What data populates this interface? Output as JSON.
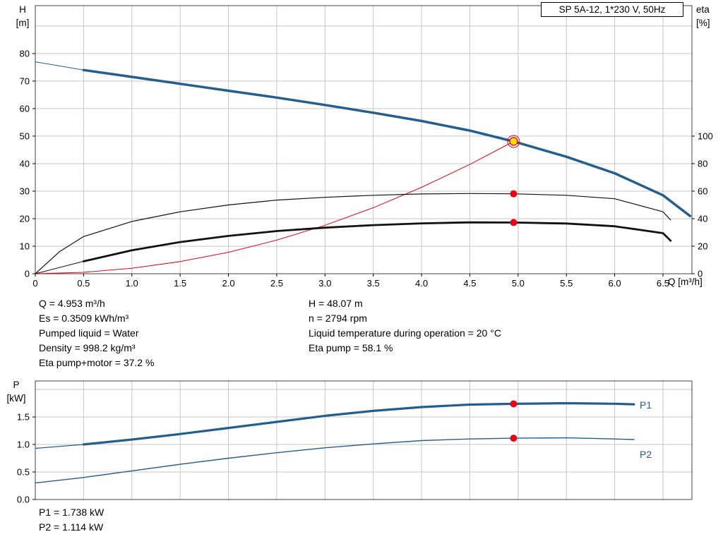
{
  "colors": {
    "curve_blue": "#245e8f",
    "curve_black": "#111111",
    "marker_red": "#e30613",
    "duty_fill": "#ffe000",
    "grid": "#c6c6c6",
    "border": "#404040"
  },
  "results": {
    "left": [
      "Q = 4.953 m³/h",
      "Es = 0.3509 kWh/m³",
      "Pumped liquid = Water",
      "Density = 998.2 kg/m³",
      "Eta pump+motor = 37.2 %"
    ],
    "right": [
      "H = 48.07 m",
      "n = 2794 rpm",
      "Liquid temperature during operation = 20 °C",
      "Eta pump = 58.1 %"
    ]
  },
  "power_results": [
    "P1 = 1.738 kW",
    "P2 = 1.114 kW"
  ],
  "chart_data": [
    {
      "type": "line",
      "title": "SP 5A-12, 1*230 V, 50Hz",
      "xlabel": "Q [m³/h]",
      "ylabels": {
        "left_name": "H",
        "left_unit": "[m]",
        "right_name": "eta",
        "right_unit": "[%]"
      },
      "xlim": [
        0,
        6.8
      ],
      "ylim": [
        0,
        97.4
      ],
      "right_to_left": 0.5,
      "x_ticks": [
        0,
        0.5,
        1,
        1.5,
        2,
        2.5,
        3,
        3.5,
        4,
        4.5,
        5,
        5.5,
        6,
        6.5
      ],
      "x_tick_labels": [
        "0",
        "0.5",
        "1.0",
        "1.5",
        "2.0",
        "2.5",
        "3.0",
        "3.5",
        "4.0",
        "4.5",
        "5.0",
        "5.5",
        "6.0",
        "6.5"
      ],
      "y_ticks": [
        0,
        10,
        20,
        30,
        40,
        50,
        60,
        70,
        80
      ],
      "y_tick_labels": [
        "0",
        "10",
        "20",
        "30",
        "40",
        "50",
        "60",
        "70",
        "80"
      ],
      "grid_y": [
        10,
        20,
        30,
        40,
        50,
        60,
        70,
        80,
        90
      ],
      "y_ticks_right": [
        0,
        20,
        40,
        60,
        80,
        100
      ],
      "y_tick_labels_right": [
        "0",
        "20",
        "40",
        "60",
        "80",
        "100"
      ],
      "series": [
        {
          "id": "hq-curve",
          "name": "H-Q pump curve",
          "axis": "left",
          "color": "#245e8f",
          "width": 3.5,
          "thin_before": 0.5,
          "thin_width": 1,
          "x": [
            0,
            0.5,
            1,
            1.5,
            2,
            2.5,
            3,
            3.5,
            4,
            4.5,
            4.953,
            5.5,
            6,
            6.5,
            6.78
          ],
          "y": [
            77,
            74,
            71.5,
            69,
            66.5,
            64,
            61.3,
            58.5,
            55.5,
            52,
            48.07,
            42.5,
            36.5,
            28.5,
            21
          ]
        },
        {
          "id": "system-curve",
          "name": "System curve",
          "axis": "left",
          "color": "#e30613",
          "width": 1,
          "x": [
            0,
            0.5,
            1,
            1.5,
            2,
            2.5,
            3,
            3.5,
            4,
            4.5,
            4.953
          ],
          "y": [
            0,
            0.5,
            2,
            4.4,
            7.8,
            12.2,
            17.6,
            24,
            31.4,
            39.7,
            48.07
          ]
        },
        {
          "id": "eta-pump-curve",
          "name": "Eta pump",
          "axis": "right",
          "color": "#111111",
          "width": 1.2,
          "x": [
            0,
            0.25,
            0.5,
            1,
            1.5,
            2,
            2.5,
            3,
            3.5,
            4,
            4.5,
            4.953,
            5.5,
            6,
            6.5,
            6.58
          ],
          "y": [
            0,
            16,
            27,
            38,
            45,
            50,
            53.5,
            55.5,
            57,
            58,
            58.3,
            58.1,
            57,
            54.5,
            45,
            39
          ]
        },
        {
          "id": "eta-pump-motor-curve",
          "name": "Eta pump+motor",
          "axis": "right",
          "color": "#111111",
          "width": 2.8,
          "thin_before": 0.5,
          "thin_width": 1,
          "x": [
            0,
            0.5,
            1,
            1.5,
            2,
            2.5,
            3,
            3.5,
            4,
            4.5,
            4.953,
            5.5,
            6,
            6.5,
            6.58
          ],
          "y": [
            0,
            9,
            17,
            23,
            27.5,
            31,
            33.5,
            35.3,
            36.6,
            37.3,
            37.2,
            36.5,
            34.5,
            29.5,
            24
          ]
        }
      ],
      "markers": [
        {
          "name": "duty-point",
          "x": 4.953,
          "y": 48.07,
          "axis": "left",
          "fill": "#ffe000",
          "stroke": "#e30613",
          "r": 5.5,
          "ring": true
        },
        {
          "name": "eta-pump-point",
          "x": 4.953,
          "y": 58.1,
          "axis": "right",
          "fill": "#e30613",
          "r": 5
        },
        {
          "name": "eta-pump-motor-point",
          "x": 4.953,
          "y": 37.2,
          "axis": "right",
          "fill": "#e30613",
          "r": 5
        }
      ]
    },
    {
      "type": "line",
      "title": "",
      "xlabel": "",
      "ylabels": {
        "left_name": "P",
        "left_unit": "[kW]"
      },
      "xlim": [
        0,
        6.8
      ],
      "ylim": [
        0,
        2.154
      ],
      "x_ticks": [
        0,
        0.5,
        1,
        1.5,
        2,
        2.5,
        3,
        3.5,
        4,
        4.5,
        5,
        5.5,
        6,
        6.5
      ],
      "y_ticks": [
        0,
        0.5,
        1,
        1.5
      ],
      "y_tick_labels": [
        "0.0",
        "0.5",
        "1.0",
        "1.5"
      ],
      "grid_y": [
        0.5,
        1,
        1.5,
        2
      ],
      "series": [
        {
          "id": "p1-curve",
          "name": "P1",
          "axis": "left",
          "color": "#245e8f",
          "width": 3.2,
          "thin_before": 0.5,
          "thin_width": 1.2,
          "x": [
            0,
            0.5,
            1,
            1.5,
            2,
            2.5,
            3,
            3.5,
            4,
            4.5,
            4.953,
            5.5,
            6,
            6.2
          ],
          "y": [
            0.93,
            1.0,
            1.09,
            1.19,
            1.3,
            1.41,
            1.52,
            1.61,
            1.68,
            1.725,
            1.738,
            1.75,
            1.74,
            1.73
          ]
        },
        {
          "id": "p2-curve",
          "name": "P2",
          "axis": "left",
          "color": "#245e8f",
          "width": 1.4,
          "x": [
            0,
            0.5,
            1,
            1.5,
            2,
            2.5,
            3,
            3.5,
            4,
            4.5,
            4.953,
            5.5,
            6,
            6.2
          ],
          "y": [
            0.3,
            0.4,
            0.52,
            0.64,
            0.75,
            0.85,
            0.94,
            1.01,
            1.07,
            1.1,
            1.114,
            1.12,
            1.1,
            1.09
          ]
        }
      ],
      "markers": [
        {
          "name": "p1-point",
          "x": 4.953,
          "y": 1.738,
          "axis": "left",
          "fill": "#e30613",
          "r": 5
        },
        {
          "name": "p2-point",
          "x": 4.953,
          "y": 1.114,
          "axis": "left",
          "fill": "#e30613",
          "r": 5
        }
      ]
    }
  ]
}
